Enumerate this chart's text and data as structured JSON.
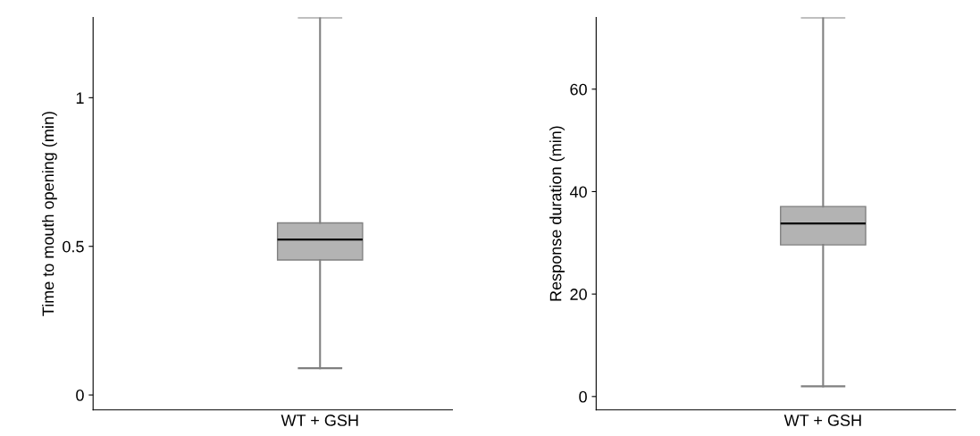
{
  "chart_data": [
    {
      "type": "box",
      "ylabel": "Time to mouth opening (min)",
      "categories": [
        "WT + GSH"
      ],
      "color": "#b3b3b3",
      "boxes": [
        {
          "low": 0.09,
          "q1": 0.454,
          "median": 0.523,
          "q3": 0.579,
          "high": 1.27
        }
      ],
      "ylim": [
        -0.05,
        1.27
      ],
      "yticks": [
        0,
        0.5,
        1
      ],
      "grid": false
    },
    {
      "type": "box",
      "ylabel": "Response duration (min)",
      "categories": [
        "WT + GSH"
      ],
      "color": "#b3b3b3",
      "boxes": [
        {
          "low": 2,
          "q1": 29.6,
          "median": 33.8,
          "q3": 37.1,
          "high": 74
        }
      ],
      "ylim": [
        -2.6,
        74
      ],
      "yticks": [
        0,
        20,
        40,
        60
      ],
      "grid": false
    }
  ]
}
